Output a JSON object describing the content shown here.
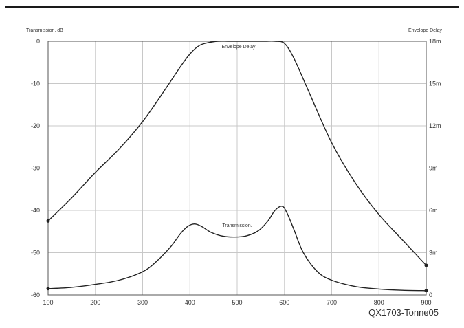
{
  "chart_data": {
    "type": "line",
    "left_axis_title": "Transmission, dB",
    "right_axis_title": "Envelope Delay",
    "caption": "QX1703-Tonne05",
    "grid": true,
    "xlim": [
      100,
      900
    ],
    "ylim_left": [
      -60,
      0
    ],
    "ylim_right": [
      0,
      18
    ],
    "x_ticks": [
      "100",
      "200",
      "300",
      "400",
      "500",
      "600",
      "700",
      "800",
      "900"
    ],
    "y_ticks_left": [
      "0",
      "-10",
      "-20",
      "-30",
      "-40",
      "-50",
      "-60"
    ],
    "y_ticks_right": [
      "18m",
      "15m",
      "12m",
      "9m",
      "6m",
      "3m",
      "0"
    ],
    "series": [
      {
        "name": "Envelope Delay",
        "axis": "left",
        "endpoint_markers": true,
        "x": [
          100,
          150,
          200,
          250,
          300,
          350,
          380,
          400,
          420,
          440,
          460,
          480,
          500,
          520,
          540,
          560,
          580,
          600,
          620,
          650,
          700,
          750,
          800,
          850,
          900
        ],
        "y": [
          -42.5,
          -37,
          -31,
          -25.5,
          -19,
          -11,
          -6,
          -3,
          -1,
          -0.3,
          0,
          0,
          0,
          0,
          0,
          0,
          0,
          -0.5,
          -4,
          -11.5,
          -24,
          -33.5,
          -41,
          -47,
          -53
        ]
      },
      {
        "name": "Transmission.",
        "axis": "left",
        "endpoint_markers": true,
        "x": [
          100,
          150,
          200,
          250,
          300,
          330,
          360,
          380,
          395,
          410,
          425,
          445,
          470,
          495,
          520,
          545,
          565,
          580,
          595,
          605,
          620,
          640,
          670,
          700,
          750,
          800,
          850,
          900
        ],
        "y": [
          -58.5,
          -58.2,
          -57.5,
          -56.5,
          -54.5,
          -52,
          -48.5,
          -45.5,
          -43.8,
          -43.2,
          -43.8,
          -45.2,
          -46.1,
          -46.3,
          -46,
          -44.8,
          -42.5,
          -40,
          -39,
          -40.5,
          -44.5,
          -50,
          -54.5,
          -56.5,
          -58,
          -58.6,
          -58.9,
          -59
        ]
      }
    ]
  }
}
